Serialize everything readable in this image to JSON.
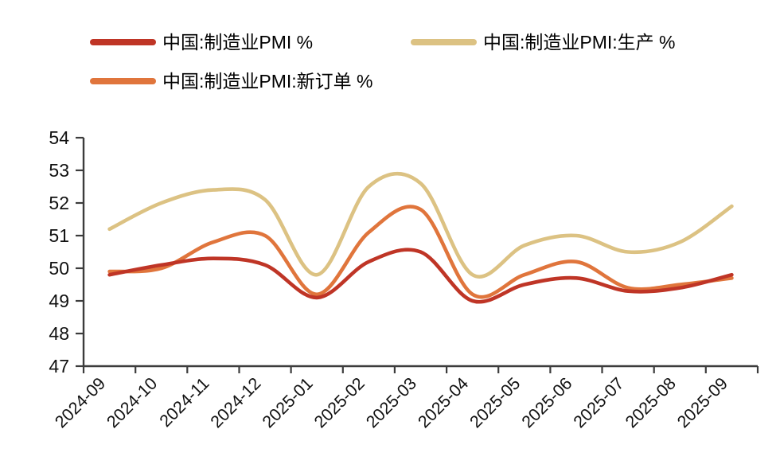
{
  "chart_data": {
    "type": "line",
    "title": "",
    "categories": [
      "2024-09",
      "2024-10",
      "2024-11",
      "2024-12",
      "2025-01",
      "2025-02",
      "2025-03",
      "2025-04",
      "2025-05",
      "2025-06",
      "2025-07",
      "2025-08",
      "2025-09"
    ],
    "series": [
      {
        "name": "中国:制造业PMI %",
        "color": "#BF3526",
        "values": [
          49.8,
          50.1,
          50.3,
          50.1,
          49.1,
          50.2,
          50.5,
          49.0,
          49.5,
          49.7,
          49.3,
          49.4,
          49.8
        ]
      },
      {
        "name": "中国:制造业PMI:生产 %",
        "color": "#DCC283",
        "values": [
          51.2,
          52.0,
          52.4,
          52.1,
          49.8,
          52.5,
          52.6,
          49.8,
          50.7,
          51.0,
          50.5,
          50.8,
          51.9
        ]
      },
      {
        "name": "中国:制造业PMI:新订单 %",
        "color": "#E0753C",
        "values": [
          49.9,
          50.0,
          50.8,
          51.0,
          49.2,
          51.1,
          51.8,
          49.2,
          49.8,
          50.2,
          49.4,
          49.5,
          49.7
        ]
      }
    ],
    "xlabel": "",
    "ylabel": "",
    "ylim": [
      47,
      54
    ],
    "yticks": [
      47,
      48,
      49,
      50,
      51,
      52,
      53,
      54
    ],
    "grid": false,
    "legend_position": "top",
    "line_style": "smoothed-spline",
    "axis_color": "#3C3C3C"
  }
}
